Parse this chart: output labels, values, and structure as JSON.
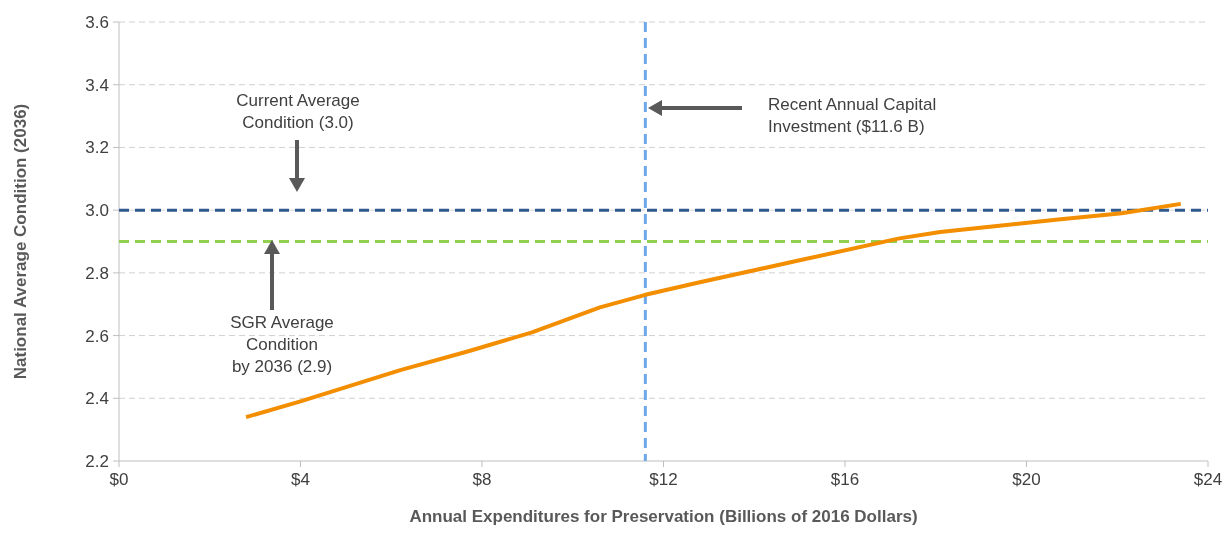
{
  "chart_data": {
    "type": "line",
    "xlabel": "Annual Expenditures for Preservation (Billions of 2016 Dollars)",
    "ylabel": "National Average Condition (2036)",
    "xlim": [
      0,
      24
    ],
    "ylim": [
      2.2,
      3.6
    ],
    "xticks": [
      {
        "value": 0,
        "label": "$0"
      },
      {
        "value": 4,
        "label": "$4"
      },
      {
        "value": 8,
        "label": "$8"
      },
      {
        "value": 12,
        "label": "$12"
      },
      {
        "value": 16,
        "label": "$16"
      },
      {
        "value": 20,
        "label": "$20"
      },
      {
        "value": 24,
        "label": "$24"
      }
    ],
    "yticks": [
      {
        "value": 2.2,
        "label": "2.2"
      },
      {
        "value": 2.4,
        "label": "2.4"
      },
      {
        "value": 2.6,
        "label": "2.6"
      },
      {
        "value": 2.8,
        "label": "2.8"
      },
      {
        "value": 3.0,
        "label": "3.0"
      },
      {
        "value": 3.2,
        "label": "3.2"
      },
      {
        "value": 3.4,
        "label": "3.4"
      },
      {
        "value": 3.6,
        "label": "3.6"
      }
    ],
    "grid": "y",
    "series": [
      {
        "color": "#f28e00",
        "x": [
          2.8,
          4.0,
          6.2,
          7.7,
          9.1,
          10.6,
          11.6,
          12.8,
          15.0,
          17.2,
          18.1,
          19.4,
          20.7,
          22.1,
          23.4
        ],
        "values": [
          2.34,
          2.39,
          2.49,
          2.55,
          2.61,
          2.69,
          2.73,
          2.77,
          2.84,
          2.91,
          2.93,
          2.95,
          2.97,
          2.99,
          3.02
        ]
      }
    ],
    "ref_lines": [
      {
        "axis": "y",
        "value": 3.0,
        "color": "#2e5a8e",
        "line_style": "dashed"
      },
      {
        "axis": "y",
        "value": 2.9,
        "color": "#92d050",
        "line_style": "dashed"
      },
      {
        "axis": "x",
        "value": 11.6,
        "color": "#6fa8e8",
        "line_style": "dashed"
      }
    ],
    "annotations": [
      "Current Average\nCondition (3.0)",
      "SGR Average\nCondition\nby 2036 (2.9)",
      "Recent Annual Capital\nInvestment ($11.6 B)"
    ]
  }
}
